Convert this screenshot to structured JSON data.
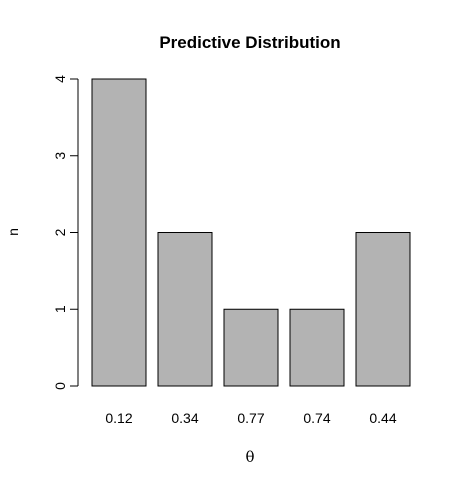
{
  "chart_data": {
    "type": "bar",
    "title": "Predictive Distribution",
    "xlabel": "θ",
    "ylabel": "n",
    "categories": [
      "0.12",
      "0.34",
      "0.77",
      "0.74",
      "0.44"
    ],
    "values": [
      4,
      2,
      1,
      1,
      2
    ],
    "ylim": [
      0,
      4
    ],
    "yticks": [
      "0",
      "1",
      "2",
      "3",
      "4"
    ],
    "bar_color": "#b3b3b3",
    "bar_border_color": "#000000",
    "grid": false,
    "legend": "none"
  }
}
